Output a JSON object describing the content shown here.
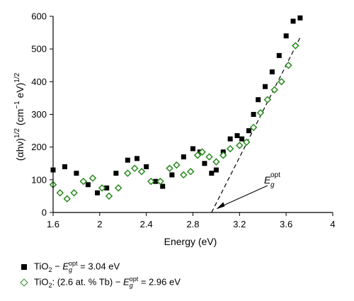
{
  "chart_data": {
    "type": "scatter",
    "title": "",
    "xlabel": "Energy (eV)",
    "ylabel": "(αhν)^1/2 (cm^−1 eV)^1/2",
    "xlim": [
      1.6,
      4.0
    ],
    "ylim": [
      0,
      600
    ],
    "xticks": [
      "1.6",
      "2",
      "2.4",
      "2.8",
      "3.2",
      "3.6",
      "4"
    ],
    "yticks": [
      "0",
      "100",
      "200",
      "300",
      "400",
      "500",
      "600"
    ],
    "grid": false,
    "legend_position": "bottom-left",
    "series": [
      {
        "name": "TiO2 − Eg opt = 3.04 eV",
        "marker": "square",
        "color": "#000000",
        "points": [
          [
            1.6,
            130
          ],
          [
            1.7,
            140
          ],
          [
            1.8,
            120
          ],
          [
            1.9,
            85
          ],
          [
            1.98,
            60
          ],
          [
            2.06,
            75
          ],
          [
            2.14,
            120
          ],
          [
            2.24,
            160
          ],
          [
            2.32,
            165
          ],
          [
            2.4,
            140
          ],
          [
            2.48,
            95
          ],
          [
            2.54,
            80
          ],
          [
            2.62,
            115
          ],
          [
            2.72,
            170
          ],
          [
            2.8,
            195
          ],
          [
            2.86,
            185
          ],
          [
            2.9,
            150
          ],
          [
            2.96,
            120
          ],
          [
            3.0,
            130
          ],
          [
            3.06,
            185
          ],
          [
            3.12,
            225
          ],
          [
            3.18,
            235
          ],
          [
            3.22,
            225
          ],
          [
            3.28,
            250
          ],
          [
            3.32,
            300
          ],
          [
            3.36,
            345
          ],
          [
            3.42,
            385
          ],
          [
            3.48,
            430
          ],
          [
            3.54,
            480
          ],
          [
            3.6,
            540
          ],
          [
            3.66,
            585
          ],
          [
            3.72,
            595
          ]
        ]
      },
      {
        "name": "TiO2: (2.6 at. % Tb) − Eg opt = 2.96 eV",
        "marker": "diamond",
        "color": "#2a8a1e",
        "points": [
          [
            1.6,
            85
          ],
          [
            1.66,
            60
          ],
          [
            1.72,
            42
          ],
          [
            1.78,
            60
          ],
          [
            1.86,
            95
          ],
          [
            1.94,
            105
          ],
          [
            2.02,
            75
          ],
          [
            2.08,
            50
          ],
          [
            2.16,
            75
          ],
          [
            2.24,
            120
          ],
          [
            2.3,
            135
          ],
          [
            2.36,
            125
          ],
          [
            2.44,
            95
          ],
          [
            2.52,
            95
          ],
          [
            2.6,
            135
          ],
          [
            2.66,
            145
          ],
          [
            2.72,
            115
          ],
          [
            2.78,
            125
          ],
          [
            2.84,
            175
          ],
          [
            2.88,
            185
          ],
          [
            2.94,
            170
          ],
          [
            3.0,
            155
          ],
          [
            3.06,
            175
          ],
          [
            3.12,
            195
          ],
          [
            3.2,
            205
          ],
          [
            3.26,
            215
          ],
          [
            3.32,
            260
          ],
          [
            3.38,
            305
          ],
          [
            3.44,
            345
          ],
          [
            3.5,
            375
          ],
          [
            3.56,
            400
          ],
          [
            3.62,
            450
          ],
          [
            3.68,
            510
          ]
        ]
      }
    ],
    "fit_line": {
      "x": [
        2.96,
        3.72
      ],
      "y": [
        0,
        535
      ],
      "style": "dashed"
    },
    "annotation": {
      "text": "Eg opt",
      "arrow_to": [
        3.0,
        10
      ]
    }
  },
  "legend": [
    {
      "base": "TiO",
      "sub": "2",
      "mid": " − ",
      "sym": "E",
      "symsub": "g",
      "symsup": "opt",
      "val": " = 3.04 eV"
    },
    {
      "base": "TiO",
      "sub": "2",
      "mid": ": (2.6 at. % Tb) − ",
      "sym": "E",
      "symsub": "g",
      "symsup": "opt",
      "val": " = 2.96 eV"
    }
  ],
  "colors": {
    "series1": "#000000",
    "series2": "#2a8a1e"
  }
}
